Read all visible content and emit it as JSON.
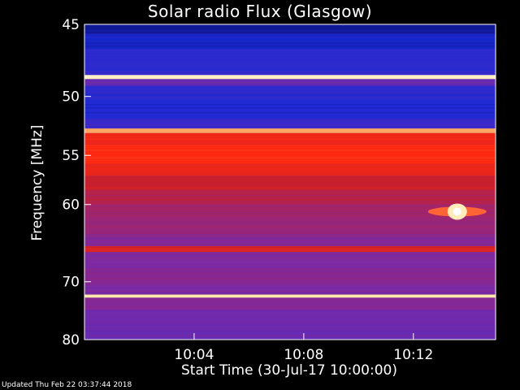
{
  "chart_data": {
    "type": "heatmap",
    "title": "Solar radio Flux (Glasgow)",
    "xlabel": "Start Time (30-Jul-17 10:00:00)",
    "ylabel": "Frequency [MHz]",
    "x_ticks": [
      "10:04",
      "10:08",
      "10:12"
    ],
    "x_tick_minutes": [
      4,
      8,
      12
    ],
    "x_range_minutes": [
      0,
      15
    ],
    "y_ticks": [
      45,
      50,
      55,
      60,
      70,
      80
    ],
    "y_range": [
      45,
      80
    ],
    "y_scale": "reciprocal",
    "grid": false,
    "colormap": [
      "#000030",
      "#1a2ad8",
      "#7a2aa8",
      "#c8202e",
      "#ff2a10",
      "#ffe08a",
      "#ffffff"
    ],
    "bands": [
      {
        "from": 45.0,
        "to": 45.6,
        "level": 0.1
      },
      {
        "from": 45.6,
        "to": 46.6,
        "level": 0.15
      },
      {
        "from": 46.6,
        "to": 48.4,
        "level": 0.2
      },
      {
        "from": 48.4,
        "to": 48.7,
        "level": 0.92
      },
      {
        "from": 48.7,
        "to": 49.2,
        "level": 0.3
      },
      {
        "from": 49.2,
        "to": 50.2,
        "level": 0.2
      },
      {
        "from": 50.2,
        "to": 51.8,
        "level": 0.18
      },
      {
        "from": 51.8,
        "to": 52.6,
        "level": 0.22
      },
      {
        "from": 52.6,
        "to": 53.0,
        "level": 0.78
      },
      {
        "from": 53.0,
        "to": 54.0,
        "level": 0.62
      },
      {
        "from": 54.0,
        "to": 55.8,
        "level": 0.66
      },
      {
        "from": 55.8,
        "to": 57.0,
        "level": 0.6
      },
      {
        "from": 57.0,
        "to": 58.5,
        "level": 0.5
      },
      {
        "from": 58.5,
        "to": 60.0,
        "level": 0.46
      },
      {
        "from": 60.0,
        "to": 61.5,
        "level": 0.42
      },
      {
        "from": 61.5,
        "to": 63.5,
        "level": 0.4
      },
      {
        "from": 63.5,
        "to": 65.0,
        "level": 0.36
      },
      {
        "from": 65.0,
        "to": 65.8,
        "level": 0.55
      },
      {
        "from": 65.8,
        "to": 68.0,
        "level": 0.34
      },
      {
        "from": 68.0,
        "to": 70.5,
        "level": 0.36
      },
      {
        "from": 70.5,
        "to": 72.0,
        "level": 0.34
      },
      {
        "from": 72.0,
        "to": 72.5,
        "level": 0.88
      },
      {
        "from": 72.5,
        "to": 74.5,
        "level": 0.36
      },
      {
        "from": 74.5,
        "to": 77.0,
        "level": 0.32
      },
      {
        "from": 77.0,
        "to": 80.0,
        "level": 0.3
      }
    ],
    "bursts": [
      {
        "time_minutes": 13.6,
        "freq": 60.8,
        "level": 1.0
      }
    ]
  },
  "footer": {
    "updated": "Updated Thu Feb 22 03:37:44 2018"
  }
}
